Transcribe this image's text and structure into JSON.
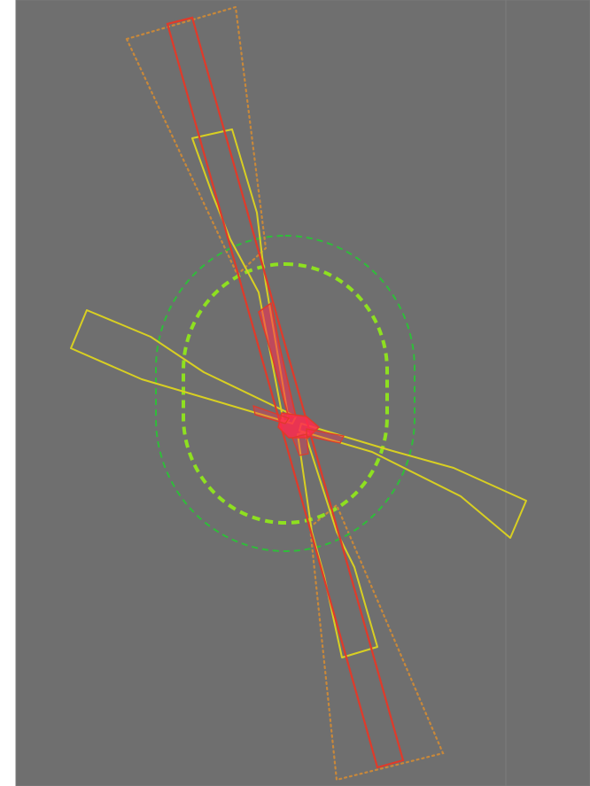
{
  "scene": {
    "description_free": true,
    "colors": {
      "background": "#ffffff",
      "canvas": "#6f6f6f",
      "frame_edge": "#7a7a7a",
      "grid_line": "#7c7c7c",
      "red_outline": "#e03a2a",
      "red_fill_core": "#ff2a4e",
      "yellow_outline": "#d8cf22",
      "dotted_orange": "#c8883a",
      "green_outer": "#2fbd3a",
      "green_inner": "#8ee020"
    },
    "icons": {
      "red_beam": "long-rectangle-outline",
      "yellow_blade": "tapered-blade-outline",
      "dotted_cone": "dotted-wedge-outline",
      "green_zone": "dashed-rounded-oval"
    }
  }
}
